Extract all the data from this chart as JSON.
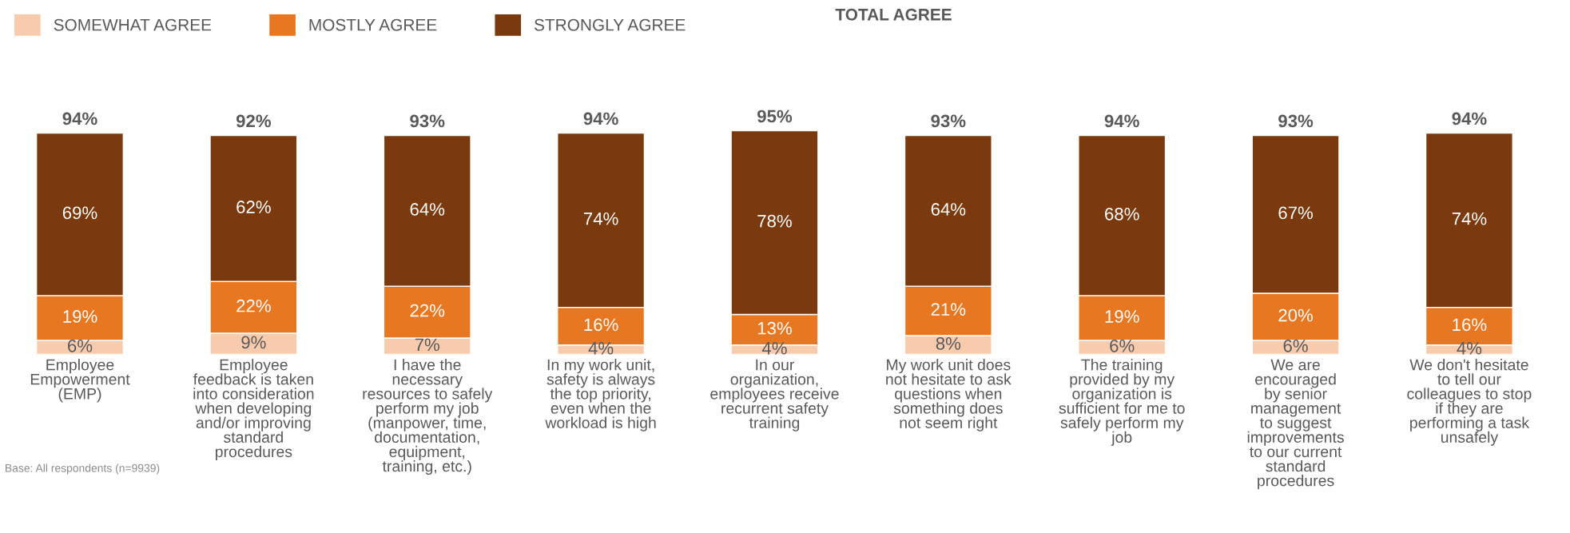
{
  "chart_data": {
    "type": "bar",
    "stacked": true,
    "legend": "top left",
    "grid": false,
    "tick_labels": "x",
    "categories": [
      "Employee\nEmpowerment\n(EMP)",
      "Employee\nfeedback is taken\ninto consideration\nwhen developing\nand/or improving\nstandard\nprocedures",
      "I have the\nnecessary\nresources to safely\nperform my job\n(manpower, time,\ndocumentation,\nequipment,\ntraining, etc.)",
      "In my work unit,\nsafety is always\nthe top priority,\neven when the\nworkload is high",
      "In our\norganization,\nemployees receive\nrecurrent safety\ntraining",
      "My work unit does\nnot hesitate to ask\nquestions when\nsomething does\nnot seem right",
      "The training\nprovided by my\norganization is\nsufficient for me to\nsafely perform my\njob",
      "We are\nencouraged\nby senior\nmanagement\nto suggest\nimprovements\nto our current\nstandard\nprocedures",
      "We don't hesitate\nto tell our\ncolleagues to stop\nif they are\nperforming a task\nunsafely"
    ],
    "series": [
      {
        "name": "SOMEWHAT AGREE",
        "color": "#f8cbad",
        "values": [
          6,
          9,
          7,
          4,
          4,
          8,
          6,
          6,
          4
        ],
        "value_labels": [
          "6%",
          "9%",
          "7%",
          "4%",
          "4%",
          "8%",
          "6%",
          "6%",
          "4%"
        ]
      },
      {
        "name": "MOSTLY AGREE",
        "color": "#e87722",
        "values": [
          19,
          22,
          22,
          16,
          13,
          21,
          19,
          20,
          16
        ],
        "value_labels": [
          "19%",
          "22%",
          "22%",
          "16%",
          "13%",
          "21%",
          "19%",
          "20%",
          "16%"
        ]
      },
      {
        "name": "STRONGLY AGREE",
        "color": "#7a3a0e",
        "values": [
          69,
          62,
          64,
          74,
          78,
          64,
          68,
          67,
          74
        ],
        "value_labels": [
          "69%",
          "62%",
          "64%",
          "74%",
          "78%",
          "64%",
          "68%",
          "67%",
          "74%"
        ]
      }
    ],
    "totals": [
      "94%",
      "92%",
      "93%",
      "94%",
      "95%",
      "93%",
      "94%",
      "93%",
      "94%"
    ],
    "annotations": [
      "TOTAL AGREE",
      "Base: All respondents (n=9939)"
    ]
  }
}
